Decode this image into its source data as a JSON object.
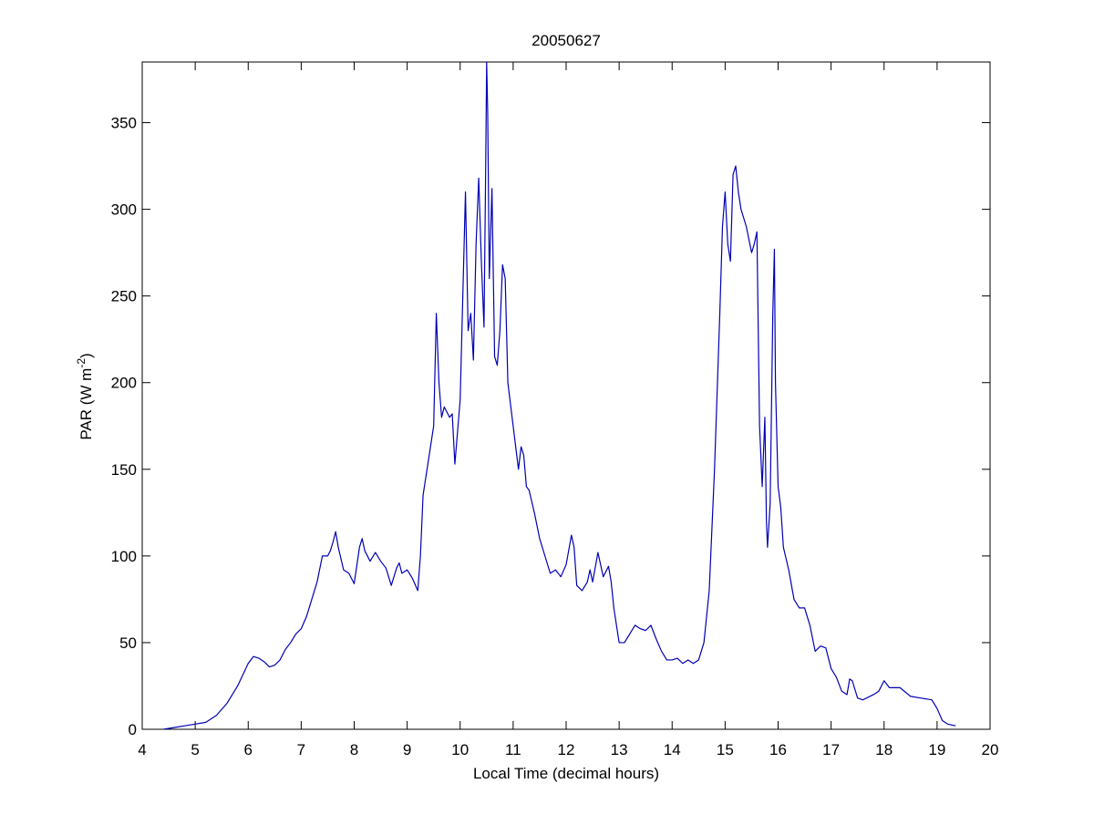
{
  "chart_data": {
    "type": "line",
    "title": "20050627",
    "xlabel": "Local Time (decimal hours)",
    "ylabel_parts": [
      "PAR (W m",
      "-2",
      ")"
    ],
    "xlim": [
      4,
      20
    ],
    "xticks": [
      4,
      5,
      6,
      7,
      8,
      9,
      10,
      11,
      12,
      13,
      14,
      15,
      16,
      17,
      18,
      19,
      20
    ],
    "ylim": [
      0,
      385
    ],
    "yticks": [
      0,
      50,
      100,
      150,
      200,
      250,
      300,
      350
    ],
    "grid": false,
    "series": [
      {
        "color": "#0000b4",
        "x": [
          4.4,
          4.6,
          4.8,
          5.0,
          5.2,
          5.4,
          5.6,
          5.8,
          6.0,
          6.1,
          6.2,
          6.3,
          6.4,
          6.5,
          6.6,
          6.7,
          6.8,
          6.9,
          7.0,
          7.1,
          7.2,
          7.3,
          7.4,
          7.5,
          7.55,
          7.6,
          7.65,
          7.7,
          7.8,
          7.9,
          8.0,
          8.1,
          8.15,
          8.2,
          8.3,
          8.4,
          8.5,
          8.6,
          8.7,
          8.8,
          8.85,
          8.9,
          9.0,
          9.1,
          9.2,
          9.25,
          9.3,
          9.4,
          9.5,
          9.55,
          9.6,
          9.65,
          9.7,
          9.8,
          9.85,
          9.9,
          10.0,
          10.05,
          10.1,
          10.15,
          10.2,
          10.25,
          10.3,
          10.35,
          10.4,
          10.45,
          10.48,
          10.5,
          10.52,
          10.55,
          10.6,
          10.65,
          10.7,
          10.75,
          10.8,
          10.85,
          10.9,
          11.0,
          11.1,
          11.15,
          11.2,
          11.25,
          11.3,
          11.4,
          11.5,
          11.6,
          11.7,
          11.8,
          11.9,
          12.0,
          12.1,
          12.15,
          12.2,
          12.3,
          12.4,
          12.45,
          12.5,
          12.6,
          12.7,
          12.8,
          12.85,
          12.9,
          13.0,
          13.1,
          13.2,
          13.3,
          13.4,
          13.5,
          13.6,
          13.7,
          13.8,
          13.9,
          14.0,
          14.1,
          14.2,
          14.3,
          14.4,
          14.5,
          14.6,
          14.7,
          14.8,
          14.9,
          14.95,
          15.0,
          15.05,
          15.1,
          15.15,
          15.2,
          15.25,
          15.3,
          15.4,
          15.5,
          15.55,
          15.6,
          15.65,
          15.7,
          15.75,
          15.78,
          15.8,
          15.85,
          15.9,
          15.93,
          15.95,
          16.0,
          16.05,
          16.1,
          16.2,
          16.3,
          16.4,
          16.5,
          16.6,
          16.7,
          16.8,
          16.9,
          17.0,
          17.1,
          17.2,
          17.3,
          17.35,
          17.4,
          17.5,
          17.6,
          17.8,
          17.9,
          18.0,
          18.1,
          18.3,
          18.5,
          18.7,
          18.9,
          19.0,
          19.1,
          19.2,
          19.35
        ],
        "values": [
          0,
          1,
          2,
          3,
          4,
          8,
          15,
          25,
          38,
          42,
          41,
          39,
          36,
          37,
          40,
          46,
          50,
          55,
          58,
          65,
          75,
          85,
          100,
          100,
          103,
          108,
          114,
          105,
          92,
          90,
          84,
          105,
          110,
          103,
          97,
          102,
          97,
          93,
          83,
          93,
          96,
          90,
          92,
          87,
          80,
          100,
          135,
          155,
          175,
          240,
          200,
          180,
          186,
          180,
          182,
          153,
          190,
          250,
          310,
          230,
          240,
          213,
          280,
          318,
          270,
          232,
          320,
          385,
          355,
          260,
          312,
          215,
          210,
          230,
          268,
          260,
          200,
          175,
          150,
          163,
          158,
          140,
          138,
          125,
          110,
          100,
          90,
          92,
          88,
          95,
          112,
          105,
          83,
          80,
          85,
          92,
          85,
          102,
          88,
          94,
          85,
          70,
          50,
          50,
          55,
          60,
          58,
          57,
          60,
          52,
          45,
          40,
          40,
          41,
          38,
          40,
          38,
          40,
          50,
          80,
          150,
          240,
          290,
          310,
          280,
          270,
          320,
          325,
          310,
          300,
          290,
          275,
          280,
          287,
          175,
          140,
          180,
          120,
          105,
          130,
          240,
          277,
          200,
          140,
          128,
          105,
          92,
          75,
          70,
          70,
          60,
          45,
          48,
          47,
          35,
          30,
          22,
          20,
          29,
          28,
          18,
          17,
          20,
          22,
          28,
          24,
          24,
          19,
          18,
          17,
          12,
          5,
          3,
          2
        ]
      }
    ]
  }
}
